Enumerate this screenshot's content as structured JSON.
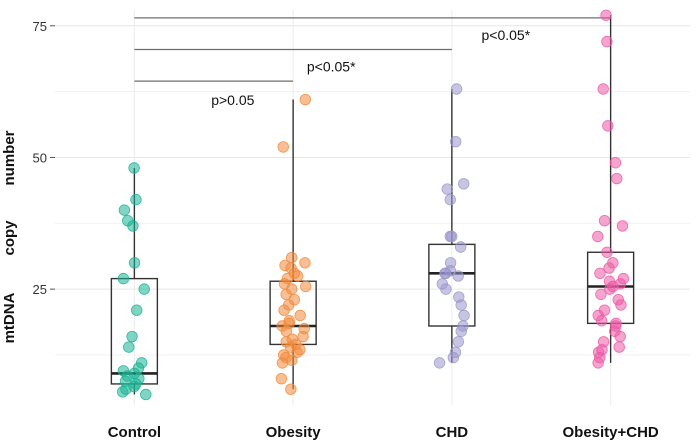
{
  "chart_data": {
    "type": "boxplot-jitter",
    "title": "",
    "xlabel": "",
    "ylabel_words": [
      "mtDNA",
      "copy",
      "number"
    ],
    "ylim": [
      3,
      78
    ],
    "yticks": [
      25,
      50,
      75
    ],
    "grid": true,
    "categories": [
      "Control",
      "Obesity",
      "CHD",
      "Obesity+CHD"
    ],
    "colors": [
      "#1ab394",
      "#f28a3c",
      "#9a96cc",
      "#ec5aa6"
    ],
    "boxes": [
      {
        "q1": 7,
        "median": 9,
        "q3": 27,
        "whisker_low": 5,
        "whisker_high": 48
      },
      {
        "q1": 14.5,
        "median": 18,
        "q3": 26.5,
        "whisker_low": 6,
        "whisker_high": 61
      },
      {
        "q1": 18,
        "median": 28,
        "q3": 33.5,
        "whisker_low": 11,
        "whisker_high": 63
      },
      {
        "q1": 18.5,
        "median": 25.5,
        "q3": 32,
        "whisker_low": 11,
        "whisker_high": 77
      }
    ],
    "points": [
      [
        48,
        42,
        40,
        38,
        37,
        30,
        27,
        25,
        21,
        16,
        14,
        11,
        10,
        9.5,
        9,
        8.5,
        8,
        7.5,
        7,
        6.5,
        6,
        5.5,
        5
      ],
      [
        61,
        52,
        31,
        30,
        29.5,
        29,
        28,
        27.5,
        27,
        26,
        25.5,
        25,
        24,
        23,
        22,
        21,
        20,
        19,
        18.5,
        18,
        17.5,
        17,
        16,
        15.5,
        15,
        14.5,
        14,
        13.5,
        13,
        12.5,
        12,
        11.5,
        11,
        8,
        6
      ],
      [
        63,
        53,
        45,
        44,
        42,
        35,
        35,
        33,
        30,
        28.5,
        28,
        28,
        27.5,
        26,
        25,
        23.5,
        22,
        20,
        18,
        17,
        15,
        13,
        12,
        11
      ],
      [
        77,
        72,
        63,
        56,
        49,
        46,
        38,
        37,
        35,
        32,
        30,
        29,
        28,
        27,
        26.5,
        26,
        25.5,
        25,
        24,
        23,
        22,
        21,
        20,
        19,
        18.5,
        18,
        17,
        16,
        15,
        14,
        13.5,
        13,
        12,
        11
      ]
    ],
    "annotations": [
      {
        "from": 0,
        "to": 1,
        "y": 64.5,
        "label": "p>0.05"
      },
      {
        "from": 0,
        "to": 2,
        "y": 70.5,
        "label": "p<0.05*"
      },
      {
        "from": 0,
        "to": 3,
        "y": 76.5,
        "label": "p<0.05*"
      }
    ]
  }
}
